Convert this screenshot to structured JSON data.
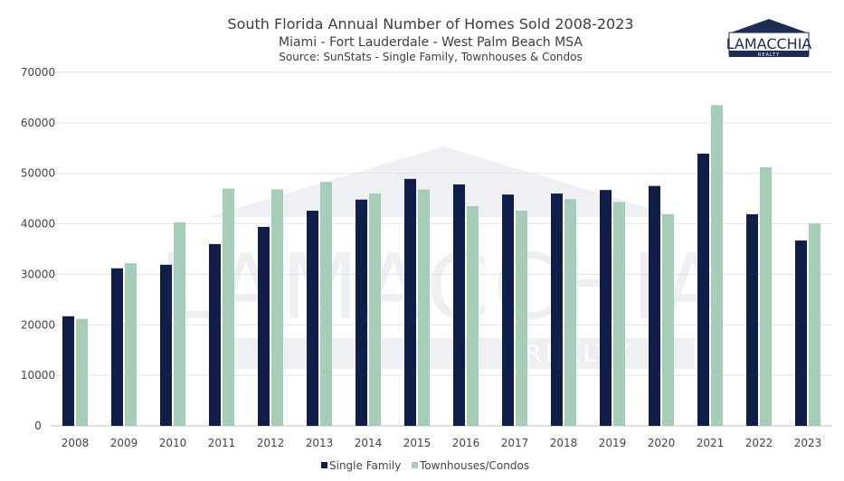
{
  "chart_data": {
    "type": "bar",
    "title": "South Florida Annual Number of Homes Sold 2008-2023",
    "subtitle": "Miami - Fort Lauderdale - West Palm Beach MSA",
    "source": "Source: SunStats - Single Family, Townhouses & Condos",
    "categories": [
      "2008",
      "2009",
      "2010",
      "2011",
      "2012",
      "2013",
      "2014",
      "2015",
      "2016",
      "2017",
      "2018",
      "2019",
      "2020",
      "2021",
      "2022",
      "2023"
    ],
    "series": [
      {
        "name": "Single Family",
        "color": "#0f1f4a",
        "values": [
          21700,
          31200,
          31900,
          36000,
          39400,
          42600,
          44800,
          48900,
          47800,
          45800,
          46000,
          46700,
          47500,
          53900,
          41900,
          36700
        ]
      },
      {
        "name": "Townhouses/Condos",
        "color": "#a6cdb8",
        "values": [
          21200,
          32200,
          40300,
          47000,
          46800,
          48300,
          46000,
          46800,
          43500,
          42600,
          44900,
          44300,
          41900,
          63500,
          51200,
          40100
        ]
      }
    ],
    "ylim": [
      0,
      70000
    ],
    "yticks": [
      0,
      10000,
      20000,
      30000,
      40000,
      50000,
      60000,
      70000
    ],
    "grid": true,
    "legend_position": "bottom-center"
  },
  "logo": {
    "name": "LAMACCHIA",
    "tagline": "REALTY",
    "color": "#1b2d55"
  }
}
